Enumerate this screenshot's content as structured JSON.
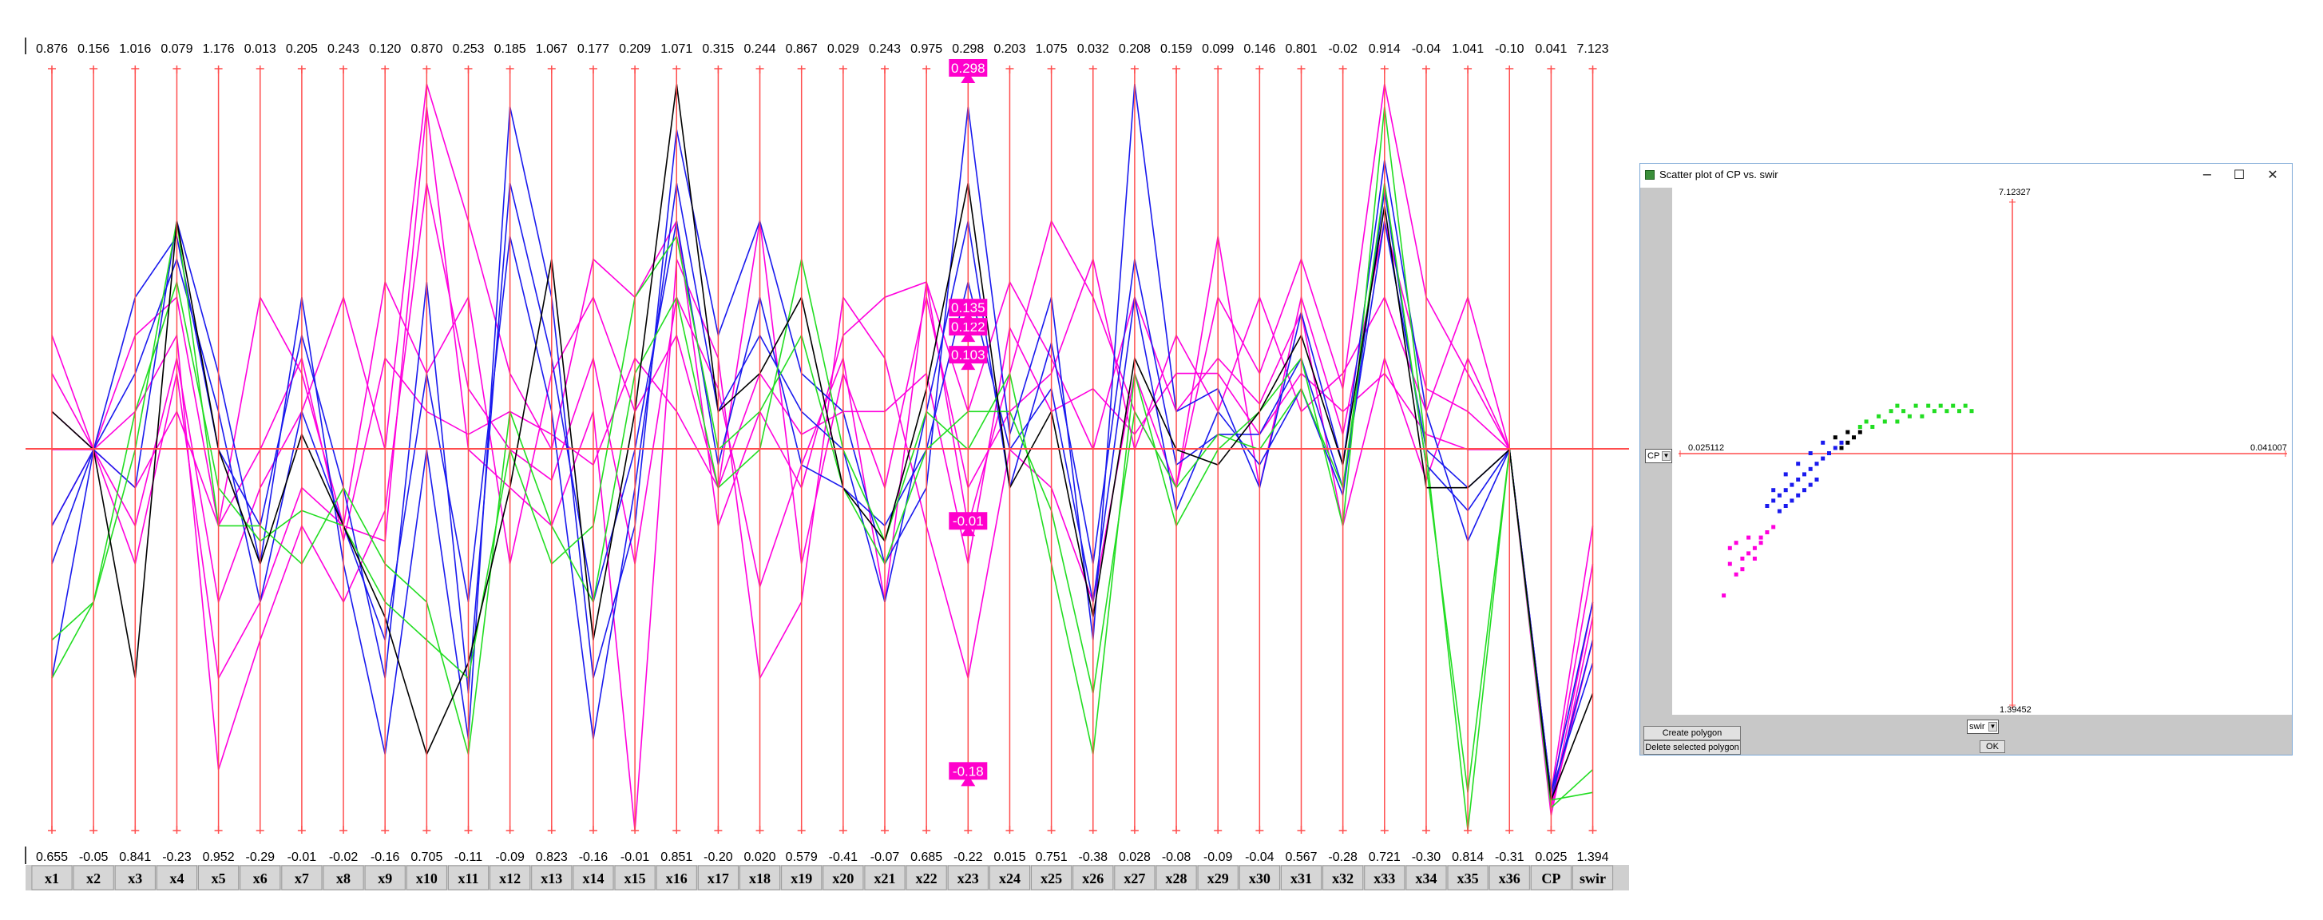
{
  "colors": {
    "axis": "#ff4d4d",
    "magenta": "#ff00dd",
    "blue": "#1a1aee",
    "green": "#22dd22",
    "black": "#000000",
    "highlight": "#ff00cc"
  },
  "chart_data": {
    "type": "parallel-coordinates",
    "axes": [
      "x1",
      "x2",
      "x3",
      "x4",
      "x5",
      "x6",
      "x7",
      "x8",
      "x9",
      "x10",
      "x11",
      "x12",
      "x13",
      "x14",
      "x15",
      "x16",
      "x17",
      "x18",
      "x19",
      "x20",
      "x21",
      "x22",
      "x23",
      "x24",
      "x25",
      "x26",
      "x27",
      "x28",
      "x29",
      "x30",
      "x31",
      "x32",
      "x33",
      "x34",
      "x35",
      "x36",
      "CP",
      "swir"
    ],
    "max_labels": [
      "0.876",
      "0.156",
      "1.016",
      "0.079",
      "1.176",
      "0.013",
      "0.205",
      "0.243",
      "0.120",
      "0.870",
      "0.253",
      "0.185",
      "1.067",
      "0.177",
      "0.209",
      "1.071",
      "0.315",
      "0.244",
      "0.867",
      "0.029",
      "0.243",
      "0.975",
      "0.298",
      "0.203",
      "1.075",
      "0.032",
      "0.208",
      "0.159",
      "0.099",
      "0.146",
      "0.801",
      "-0.02",
      "0.914",
      "-0.04",
      "1.041",
      "-0.10",
      "0.041",
      "7.123"
    ],
    "min_labels": [
      "0.655",
      "-0.05",
      "0.841",
      "-0.23",
      "0.952",
      "-0.29",
      "-0.01",
      "-0.02",
      "-0.16",
      "0.705",
      "-0.11",
      "-0.09",
      "0.823",
      "-0.16",
      "-0.01",
      "0.851",
      "-0.20",
      "0.020",
      "0.579",
      "-0.41",
      "-0.07",
      "0.685",
      "-0.22",
      "0.015",
      "0.751",
      "-0.38",
      "0.028",
      "-0.08",
      "-0.09",
      "-0.04",
      "0.567",
      "-0.28",
      "0.721",
      "-0.30",
      "0.814",
      "-0.31",
      "0.025",
      "1.394"
    ],
    "selection_markers": {
      "axis": "x23",
      "values": [
        "0.298",
        "0.122",
        "0.135",
        "0.103",
        "-0.01",
        "-0.18"
      ]
    },
    "series": [
      {
        "color": "magenta",
        "values": [
          [
            0.6,
            0.5,
            0.4,
            0.62,
            0.3,
            0.45,
            0.55,
            0.7,
            0.5,
            0.98,
            0.8,
            0.6,
            0.5,
            0.75,
            0.7,
            0.8,
            0.4,
            0.55,
            0.45,
            0.65,
            0.7,
            0.72,
            0.4,
            0.6,
            0.8,
            0.7,
            0.55,
            0.45,
            0.7,
            0.6,
            0.75,
            0.58,
            0.98,
            0.7,
            0.6,
            0.5,
            0.05,
            0.4
          ],
          [
            0.55,
            0.5,
            0.65,
            0.7,
            0.4,
            0.7,
            0.6,
            0.4,
            0.72,
            0.6,
            0.7,
            0.35,
            0.6,
            0.7,
            0.55,
            0.65,
            0.45,
            0.8,
            0.35,
            0.6,
            0.45,
            0.7,
            0.45,
            0.55,
            0.6,
            0.75,
            0.5,
            0.65,
            0.55,
            0.7,
            0.55,
            0.6,
            0.7,
            0.55,
            0.7,
            0.5,
            0.04,
            0.35
          ],
          [
            0.5,
            0.5,
            0.35,
            0.6,
            0.2,
            0.3,
            0.45,
            0.4,
            0.38,
            0.95,
            0.5,
            0.45,
            0.4,
            0.55,
            0.0,
            0.75,
            0.62,
            0.2,
            0.3,
            0.7,
            0.62,
            0.4,
            0.2,
            0.5,
            0.45,
            0.3,
            0.6,
            0.45,
            0.78,
            0.45,
            0.7,
            0.52,
            0.8,
            0.58,
            0.55,
            0.5,
            0.03,
            0.3
          ],
          [
            0.4,
            0.5,
            0.55,
            0.65,
            0.08,
            0.25,
            0.4,
            0.3,
            0.42,
            0.85,
            0.58,
            0.5,
            0.46,
            0.62,
            0.35,
            0.7,
            0.58,
            0.32,
            0.48,
            0.62,
            0.3,
            0.72,
            0.55,
            0.72,
            0.62,
            0.5,
            0.7,
            0.55,
            0.62,
            0.56,
            0.68,
            0.4,
            0.62,
            0.46,
            0.62,
            0.5,
            0.02,
            0.28
          ],
          [
            0.65,
            0.5,
            0.45,
            0.55,
            0.4,
            0.5,
            0.62,
            0.38,
            0.62,
            0.55,
            0.52,
            0.55,
            0.52,
            0.48,
            0.62,
            0.55,
            0.45,
            0.6,
            0.52,
            0.55,
            0.55,
            0.6,
            0.35,
            0.66,
            0.55,
            0.58,
            0.52,
            0.6,
            0.6,
            0.52,
            0.6,
            0.55,
            0.6,
            0.52,
            0.5,
            0.5,
            0.03,
            0.25
          ]
        ]
      },
      {
        "color": "blue",
        "values": [
          [
            0.4,
            0.5,
            0.45,
            0.8,
            0.6,
            0.35,
            0.7,
            0.35,
            0.1,
            0.5,
            0.12,
            0.95,
            0.7,
            0.2,
            0.4,
            0.92,
            0.65,
            0.8,
            0.6,
            0.55,
            0.35,
            0.45,
            0.95,
            0.52,
            0.7,
            0.25,
            0.98,
            0.55,
            0.58,
            0.45,
            0.68,
            0.48,
            0.88,
            0.55,
            0.38,
            0.5,
            0.05,
            0.3
          ],
          [
            0.35,
            0.5,
            0.6,
            0.75,
            0.55,
            0.3,
            0.55,
            0.4,
            0.25,
            0.6,
            0.3,
            0.78,
            0.55,
            0.12,
            0.45,
            0.85,
            0.55,
            0.65,
            0.55,
            0.5,
            0.3,
            0.55,
            0.8,
            0.45,
            0.64,
            0.35,
            0.75,
            0.48,
            0.52,
            0.52,
            0.62,
            0.45,
            0.8,
            0.5,
            0.45,
            0.5,
            0.04,
            0.25
          ],
          [
            0.2,
            0.5,
            0.7,
            0.78,
            0.5,
            0.4,
            0.65,
            0.45,
            0.2,
            0.72,
            0.18,
            0.85,
            0.62,
            0.3,
            0.5,
            0.8,
            0.48,
            0.7,
            0.48,
            0.45,
            0.4,
            0.5,
            0.72,
            0.5,
            0.58,
            0.3,
            0.7,
            0.42,
            0.55,
            0.48,
            0.58,
            0.44,
            0.84,
            0.48,
            0.42,
            0.5,
            0.05,
            0.22
          ]
        ]
      },
      {
        "color": "green",
        "values": [
          [
            0.2,
            0.3,
            0.5,
            0.8,
            0.4,
            0.4,
            0.35,
            0.45,
            0.35,
            0.3,
            0.1,
            0.55,
            0.4,
            0.3,
            0.6,
            0.7,
            0.45,
            0.5,
            0.75,
            0.5,
            0.38,
            0.55,
            0.5,
            0.6,
            0.35,
            0.1,
            0.6,
            0.4,
            0.5,
            0.55,
            0.62,
            0.4,
            0.95,
            0.5,
            0.0,
            0.5,
            0.03,
            0.08
          ],
          [
            0.25,
            0.3,
            0.55,
            0.72,
            0.45,
            0.38,
            0.42,
            0.4,
            0.3,
            0.25,
            0.2,
            0.5,
            0.35,
            0.4,
            0.7,
            0.78,
            0.5,
            0.55,
            0.65,
            0.45,
            0.35,
            0.5,
            0.55,
            0.55,
            0.42,
            0.18,
            0.55,
            0.45,
            0.52,
            0.5,
            0.58,
            0.45,
            0.85,
            0.48,
            0.05,
            0.5,
            0.04,
            0.05
          ]
        ]
      },
      {
        "color": "black",
        "values": [
          [
            0.55,
            0.5,
            0.2,
            0.8,
            0.5,
            0.35,
            0.52,
            0.4,
            0.28,
            0.1,
            0.22,
            0.45,
            0.75,
            0.25,
            0.55,
            0.98,
            0.55,
            0.6,
            0.7,
            0.45,
            0.38,
            0.58,
            0.85,
            0.45,
            0.55,
            0.28,
            0.62,
            0.5,
            0.48,
            0.55,
            0.65,
            0.48,
            0.82,
            0.45,
            0.45,
            0.5,
            0.04,
            0.18
          ]
        ]
      }
    ]
  },
  "scatter_window": {
    "title": "Scatter plot of CP vs. swir",
    "minimize": "−",
    "maximize": "☐",
    "close": "✕",
    "y_max_label": "7.12327",
    "y_min_label": "1.39452",
    "x_min_label": "0.025112",
    "x_max_label": "0.041007",
    "y_select": "CP",
    "x_select": "swir",
    "create_polygon": "Create polygon",
    "delete_polygon": "Delete selected polygon",
    "ok": "OK",
    "points": [
      {
        "color": "magenta",
        "pts": [
          [
            0.08,
            0.77
          ],
          [
            0.1,
            0.73
          ],
          [
            0.09,
            0.71
          ],
          [
            0.11,
            0.7
          ],
          [
            0.12,
            0.69
          ],
          [
            0.13,
            0.68
          ],
          [
            0.1,
            0.67
          ],
          [
            0.14,
            0.67
          ],
          [
            0.12,
            0.66
          ],
          [
            0.15,
            0.65
          ],
          [
            0.09,
            0.68
          ],
          [
            0.11,
            0.72
          ],
          [
            0.13,
            0.7
          ],
          [
            0.14,
            0.66
          ],
          [
            0.16,
            0.64
          ]
        ]
      },
      {
        "color": "blue",
        "pts": [
          [
            0.15,
            0.6
          ],
          [
            0.16,
            0.59
          ],
          [
            0.17,
            0.58
          ],
          [
            0.18,
            0.57
          ],
          [
            0.16,
            0.57
          ],
          [
            0.19,
            0.56
          ],
          [
            0.2,
            0.55
          ],
          [
            0.18,
            0.54
          ],
          [
            0.21,
            0.54
          ],
          [
            0.22,
            0.53
          ],
          [
            0.2,
            0.52
          ],
          [
            0.23,
            0.52
          ],
          [
            0.24,
            0.51
          ],
          [
            0.22,
            0.5
          ],
          [
            0.25,
            0.5
          ],
          [
            0.17,
            0.61
          ],
          [
            0.19,
            0.59
          ],
          [
            0.21,
            0.57
          ],
          [
            0.23,
            0.55
          ],
          [
            0.26,
            0.49
          ],
          [
            0.24,
            0.48
          ],
          [
            0.27,
            0.48
          ],
          [
            0.18,
            0.6
          ],
          [
            0.2,
            0.58
          ],
          [
            0.22,
            0.56
          ]
        ]
      },
      {
        "color": "black",
        "pts": [
          [
            0.27,
            0.49
          ],
          [
            0.28,
            0.48
          ],
          [
            0.29,
            0.47
          ],
          [
            0.28,
            0.46
          ],
          [
            0.3,
            0.46
          ],
          [
            0.26,
            0.47
          ]
        ]
      },
      {
        "color": "green",
        "pts": [
          [
            0.3,
            0.45
          ],
          [
            0.32,
            0.45
          ],
          [
            0.34,
            0.44
          ],
          [
            0.36,
            0.44
          ],
          [
            0.38,
            0.43
          ],
          [
            0.4,
            0.43
          ],
          [
            0.42,
            0.42
          ],
          [
            0.44,
            0.42
          ],
          [
            0.33,
            0.43
          ],
          [
            0.35,
            0.42
          ],
          [
            0.37,
            0.42
          ],
          [
            0.39,
            0.41
          ],
          [
            0.41,
            0.41
          ],
          [
            0.43,
            0.41
          ],
          [
            0.45,
            0.41
          ],
          [
            0.31,
            0.44
          ],
          [
            0.46,
            0.42
          ],
          [
            0.47,
            0.41
          ],
          [
            0.48,
            0.42
          ],
          [
            0.36,
            0.41
          ]
        ]
      }
    ]
  }
}
